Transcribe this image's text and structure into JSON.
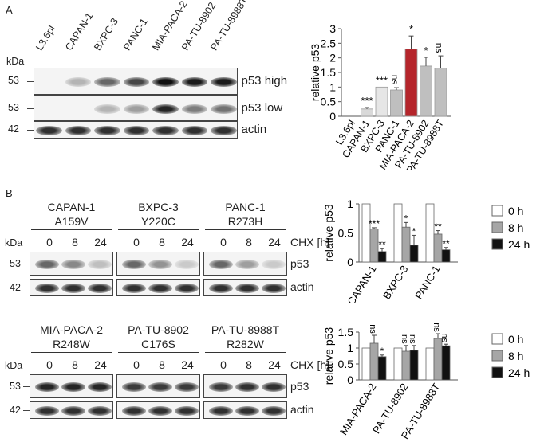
{
  "panel_a": {
    "letter": "A",
    "blot": {
      "kda_label": "kDa",
      "lanes": [
        "L3.6pl",
        "CAPAN-1",
        "BXPC-3",
        "PANC-1",
        "MIA-PACA-2",
        "PA-TU-8902",
        "PA-TU-8988T"
      ],
      "rows": [
        {
          "kda": "53",
          "label": "p53 high",
          "intensities": [
            0,
            0.25,
            0.6,
            0.75,
            1.0,
            0.95,
            0.95
          ]
        },
        {
          "kda": "53",
          "label": "p53 low",
          "intensities": [
            0,
            0.0,
            0.25,
            0.35,
            0.9,
            0.5,
            0.55
          ]
        },
        {
          "kda": "42",
          "label": "actin",
          "intensities": [
            0.85,
            0.85,
            0.85,
            0.85,
            0.85,
            0.85,
            0.85
          ]
        }
      ]
    }
  },
  "panel_b": {
    "letter": "B",
    "kda_label": "kDa",
    "cond_label": "CHX [h]",
    "times": [
      "0",
      "8",
      "24"
    ],
    "row_labels": [
      "p53",
      "actin"
    ],
    "kda_values": [
      "53",
      "42"
    ],
    "top_blots": [
      {
        "name": "CAPAN-1",
        "mutation": "A159V",
        "p53": [
          0.6,
          0.45,
          0.2
        ]
      },
      {
        "name": "BXPC-3",
        "mutation": "Y220C",
        "p53": [
          0.6,
          0.4,
          0.15
        ]
      },
      {
        "name": "PANC-1",
        "mutation": "R273H",
        "p53": [
          0.6,
          0.35,
          0.15
        ]
      }
    ],
    "bottom_blots": [
      {
        "name": "MIA-PACA-2",
        "mutation": "R248W",
        "p53": [
          0.9,
          0.9,
          0.9
        ]
      },
      {
        "name": "PA-TU-8902",
        "mutation": "C176S",
        "p53": [
          0.8,
          0.8,
          0.8
        ]
      },
      {
        "name": "PA-TU-8988T",
        "mutation": "R282W",
        "p53": [
          0.8,
          0.85,
          0.85
        ]
      }
    ]
  },
  "chart_data": [
    {
      "id": "panel-a-bar",
      "type": "bar",
      "title": "",
      "ylabel": "relative p53",
      "xlabel": "",
      "ylim": [
        0,
        3
      ],
      "yticks": [
        "0",
        "0.5",
        "1",
        "1.5",
        "2",
        "2.5",
        "3"
      ],
      "categories": [
        "L3.6pl",
        "CAPAN-1",
        "BXPC-3",
        "PANC-1",
        "MIA-PACA-2",
        "PA-TU-8902",
        "PA-TU-8988T"
      ],
      "values": [
        0,
        0.25,
        1.0,
        0.9,
        2.3,
        1.72,
        1.65
      ],
      "errors": [
        0,
        0.05,
        0,
        0.08,
        0.45,
        0.3,
        0.42
      ],
      "significance": [
        "",
        "***",
        "***",
        "ns",
        "*",
        "*",
        "ns"
      ],
      "colors": [
        "#ffffff",
        "#d9d9d9",
        "#e6e6e6",
        "#bfbfbf",
        "#b5252b",
        "#bfbfbf",
        "#bfbfbf"
      ],
      "grid": false
    },
    {
      "id": "panel-b-top-bar",
      "type": "bar",
      "ylabel": "relative p53",
      "ylim": [
        0,
        1
      ],
      "yticks": [
        "0",
        "0.5",
        "1"
      ],
      "categories": [
        "CAPAN-1",
        "BXPC-3",
        "PANC-1"
      ],
      "series": [
        {
          "name": "0 h",
          "values": [
            1,
            1,
            1
          ],
          "errors": [
            0,
            0,
            0
          ],
          "significance": [
            "",
            "",
            ""
          ],
          "color": "#ffffff"
        },
        {
          "name": "8 h",
          "values": [
            0.57,
            0.6,
            0.48
          ],
          "errors": [
            0.02,
            0.08,
            0.06
          ],
          "significance": [
            "***",
            "*",
            "**"
          ],
          "color": "#a6a6a6"
        },
        {
          "name": "24 h",
          "values": [
            0.18,
            0.29,
            0.21
          ],
          "errors": [
            0.05,
            0.17,
            0.04
          ],
          "significance": [
            "**",
            "*",
            "**"
          ],
          "color": "#111111"
        }
      ],
      "legend_position": "right",
      "grid": false
    },
    {
      "id": "panel-b-bottom-bar",
      "type": "bar",
      "ylabel": "relative p53",
      "ylim": [
        0,
        1.5
      ],
      "yticks": [
        "0",
        "0.5",
        "1",
        "1.5"
      ],
      "categories": [
        "MIA-PACA-2",
        "PA-TU-8902",
        "PA-TU-8988T"
      ],
      "series": [
        {
          "name": "0 h",
          "values": [
            1,
            1,
            1
          ],
          "errors": [
            0,
            0,
            0
          ],
          "significance": [
            "",
            "",
            ""
          ],
          "color": "#ffffff"
        },
        {
          "name": "8 h",
          "values": [
            1.15,
            0.9,
            1.3
          ],
          "errors": [
            0.25,
            0.18,
            0.15
          ],
          "significance": [
            "ns",
            "ns",
            "ns"
          ],
          "color": "#a6a6a6"
        },
        {
          "name": "24 h",
          "values": [
            0.73,
            0.93,
            1.07
          ],
          "errors": [
            0.05,
            0.15,
            0.05
          ],
          "significance": [
            "*",
            "ns",
            "ns"
          ],
          "color": "#111111"
        }
      ],
      "legend_position": "right",
      "grid": false
    }
  ]
}
